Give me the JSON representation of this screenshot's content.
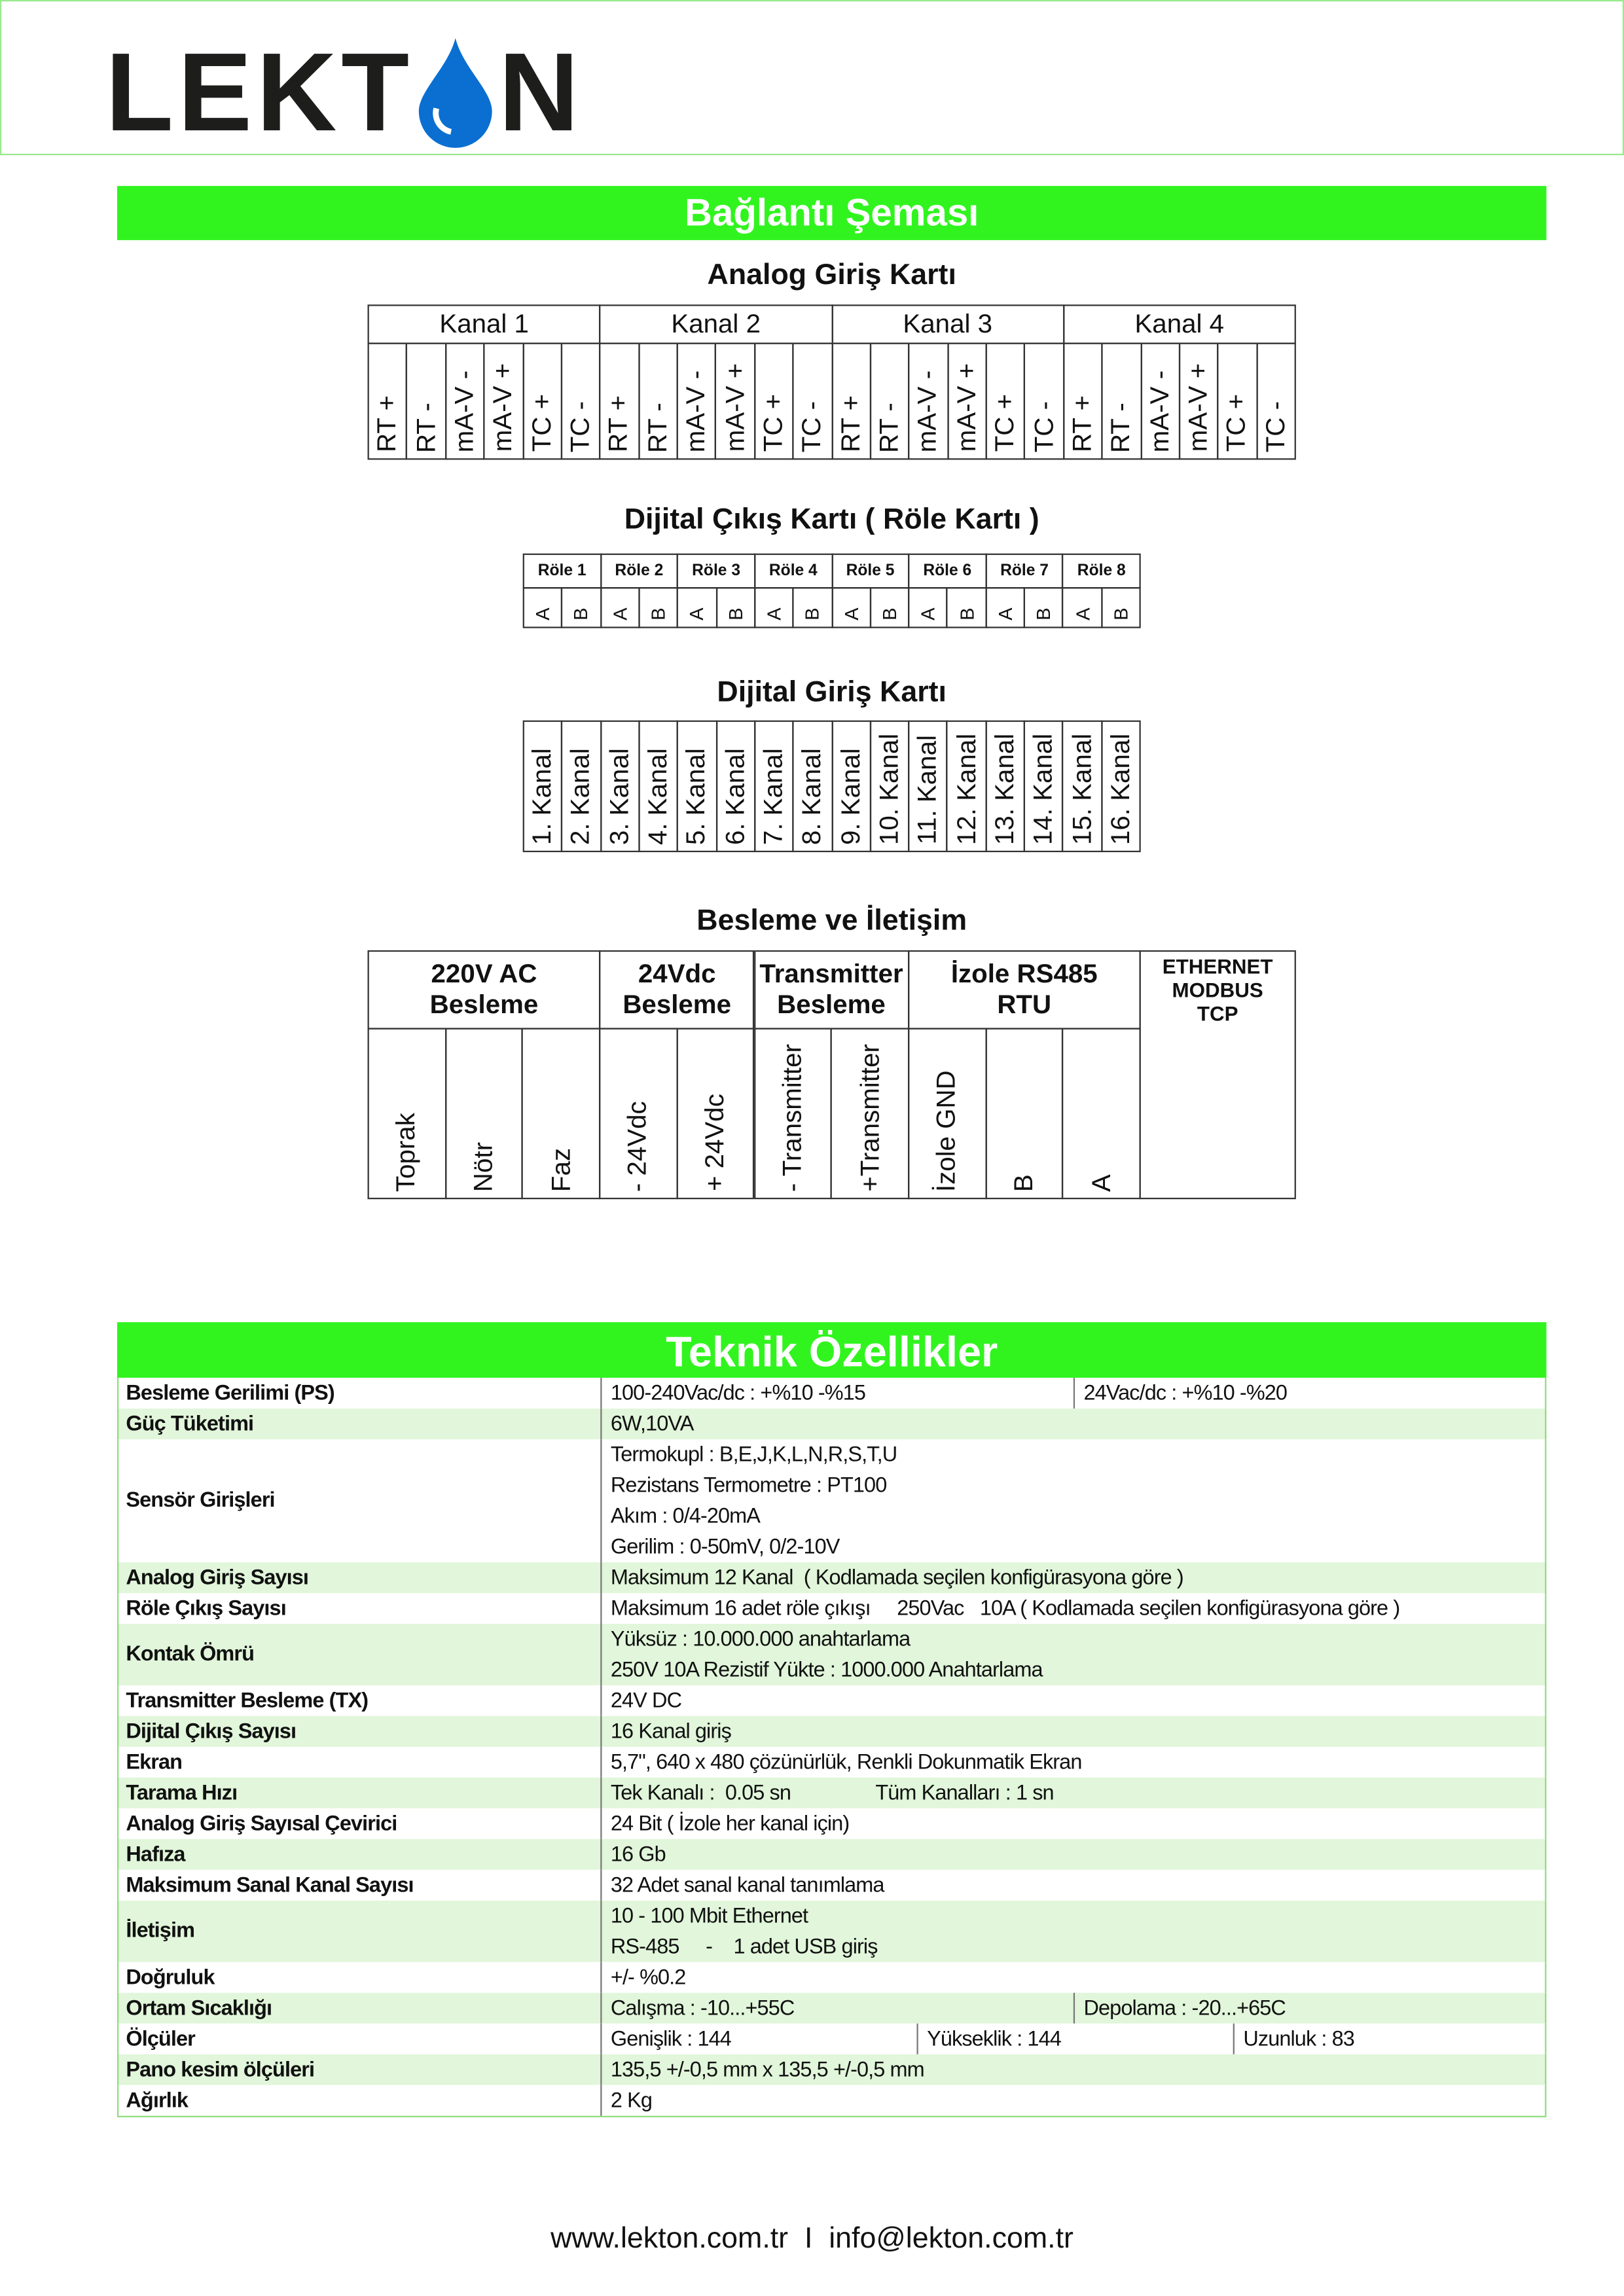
{
  "header": {
    "logo": [
      "LEKT",
      "N"
    ]
  },
  "connection": {
    "title": "Bağlantı Şeması",
    "analog": {
      "title": "Analog Giriş Kartı",
      "channels": [
        {
          "name": "Kanal 1",
          "terminals": [
            "RT +",
            "RT -",
            "mA-V -",
            "mA-V +",
            "TC +",
            "TC -"
          ]
        },
        {
          "name": "Kanal 2",
          "terminals": [
            "RT +",
            "RT -",
            "mA-V -",
            "mA-V +",
            "TC +",
            "TC -"
          ]
        },
        {
          "name": "Kanal 3",
          "terminals": [
            "RT +",
            "RT -",
            "mA-V -",
            "mA-V +",
            "TC +",
            "TC -"
          ]
        },
        {
          "name": "Kanal 4",
          "terminals": [
            "RT +",
            "RT -",
            "mA-V -",
            "mA-V +",
            "TC +",
            "TC -"
          ]
        }
      ]
    },
    "relay": {
      "title": "Dijital Çıkış Kartı ( Röle Kartı )",
      "relays": [
        {
          "name": "Röle 1",
          "terminals": [
            "A",
            "B"
          ]
        },
        {
          "name": "Röle 2",
          "terminals": [
            "A",
            "B"
          ]
        },
        {
          "name": "Röle 3",
          "terminals": [
            "A",
            "B"
          ]
        },
        {
          "name": "Röle 4",
          "terminals": [
            "A",
            "B"
          ]
        },
        {
          "name": "Röle 5",
          "terminals": [
            "A",
            "B"
          ]
        },
        {
          "name": "Röle 6",
          "terminals": [
            "A",
            "B"
          ]
        },
        {
          "name": "Röle 7",
          "terminals": [
            "A",
            "B"
          ]
        },
        {
          "name": "Röle 8",
          "terminals": [
            "A",
            "B"
          ]
        }
      ]
    },
    "digital_in": {
      "title": "Dijital Giriş Kartı",
      "channels": [
        "1. Kanal",
        "2. Kanal",
        "3. Kanal",
        "4. Kanal",
        "5. Kanal",
        "6. Kanal",
        "7. Kanal",
        "8. Kanal",
        "9. Kanal",
        "10. Kanal",
        "11. Kanal",
        "12. Kanal",
        "13. Kanal",
        "14. Kanal",
        "15. Kanal",
        "16. Kanal"
      ]
    },
    "power": {
      "title": "Besleme ve İletişim",
      "groups": [
        {
          "name": "220V AC\nBesleme",
          "terminals": [
            "Toprak",
            "Nötr",
            "Faz"
          ]
        },
        {
          "name": "24Vdc\nBesleme",
          "terminals": [
            "- 24Vdc",
            "+ 24Vdc"
          ]
        },
        {
          "name": "Transmitter\nBesleme",
          "terminals": [
            "- Transmitter",
            "+Transmitter"
          ]
        },
        {
          "name": "İzole RS485\nRTU",
          "terminals": [
            "İzole GND",
            "B",
            "A"
          ]
        },
        {
          "name": "ETHERNET\nMODBUS\nTCP",
          "terminals": []
        }
      ]
    }
  },
  "specs": {
    "title": "Teknik Özellikler",
    "rows": [
      {
        "label": "Besleme Gerilimi (PS)",
        "lines": [
          [
            "100-240Vac/dc : +%10 -%15",
            "24Vac/dc : +%10 -%20"
          ]
        ]
      },
      {
        "label": "Güç Tüketimi",
        "lines": [
          [
            "6W,10VA"
          ]
        ]
      },
      {
        "label": "Sensör Girişleri",
        "lines": [
          [
            "Termokupl : B,E,J,K,L,N,R,S,T,U"
          ],
          [
            "Rezistans Termometre : PT100"
          ],
          [
            "Akım : 0/4-20mA"
          ],
          [
            "Gerilim : 0-50mV, 0/2-10V"
          ]
        ]
      },
      {
        "label": "Analog Giriş Sayısı",
        "lines": [
          [
            "Maksimum 12 Kanal  ( Kodlamada seçilen konfigürasyona göre )"
          ]
        ]
      },
      {
        "label": "Röle Çıkış Sayısı",
        "lines": [
          [
            "Maksimum 16 adet röle çıkışı     250Vac   10A ( Kodlamada seçilen konfigürasyona göre )"
          ]
        ]
      },
      {
        "label": "Kontak Ömrü",
        "lines": [
          [
            "Yüksüz : 10.000.000 anahtarlama"
          ],
          [
            "250V 10A Rezistif Yükte : 1000.000 Anahtarlama"
          ]
        ]
      },
      {
        "label": "Transmitter Besleme (TX)",
        "lines": [
          [
            "24V DC"
          ]
        ]
      },
      {
        "label": "Dijital Çıkış Sayısı",
        "lines": [
          [
            "16 Kanal giriş"
          ]
        ]
      },
      {
        "label": "Ekran",
        "lines": [
          [
            "5,7\", 640 x 480 çözünürlük, Renkli Dokunmatik Ekran"
          ]
        ]
      },
      {
        "label": "Tarama Hızı",
        "lines": [
          [
            "Tek Kanalı :  0.05 sn                Tüm Kanalları : 1 sn"
          ]
        ]
      },
      {
        "label": "Analog Giriş Sayısal Çevirici",
        "lines": [
          [
            "24 Bit ( İzole her kanal için)"
          ]
        ]
      },
      {
        "label": "Hafıza",
        "lines": [
          [
            "16 Gb"
          ]
        ]
      },
      {
        "label": "Maksimum Sanal Kanal Sayısı",
        "lines": [
          [
            "32 Adet sanal kanal tanımlama"
          ]
        ]
      },
      {
        "label": "İletişim",
        "lines": [
          [
            "10 - 100 Mbit Ethernet"
          ],
          [
            "RS-485     -    1 adet USB giriş"
          ]
        ]
      },
      {
        "label": "Doğruluk",
        "lines": [
          [
            "+/- %0.2"
          ]
        ]
      },
      {
        "label": "Ortam Sıcaklığı",
        "lines": [
          [
            "Calışma : -10...+55C",
            "Depolama : -20...+65C"
          ]
        ]
      },
      {
        "label": "Ölçüler",
        "lines": [
          [
            "Genişlik : 144",
            "Yükseklik : 144",
            "Uzunluk : 83"
          ]
        ]
      },
      {
        "label": "Pano kesim ölçüleri",
        "lines": [
          [
            "135,5 +/-0,5 mm x 135,5 +/-0,5 mm"
          ]
        ]
      },
      {
        "label": "Ağırlık",
        "lines": [
          [
            "2 Kg"
          ]
        ]
      }
    ]
  },
  "footer": {
    "contact": "www.lekton.com.tr  I  info@lekton.com.tr"
  }
}
